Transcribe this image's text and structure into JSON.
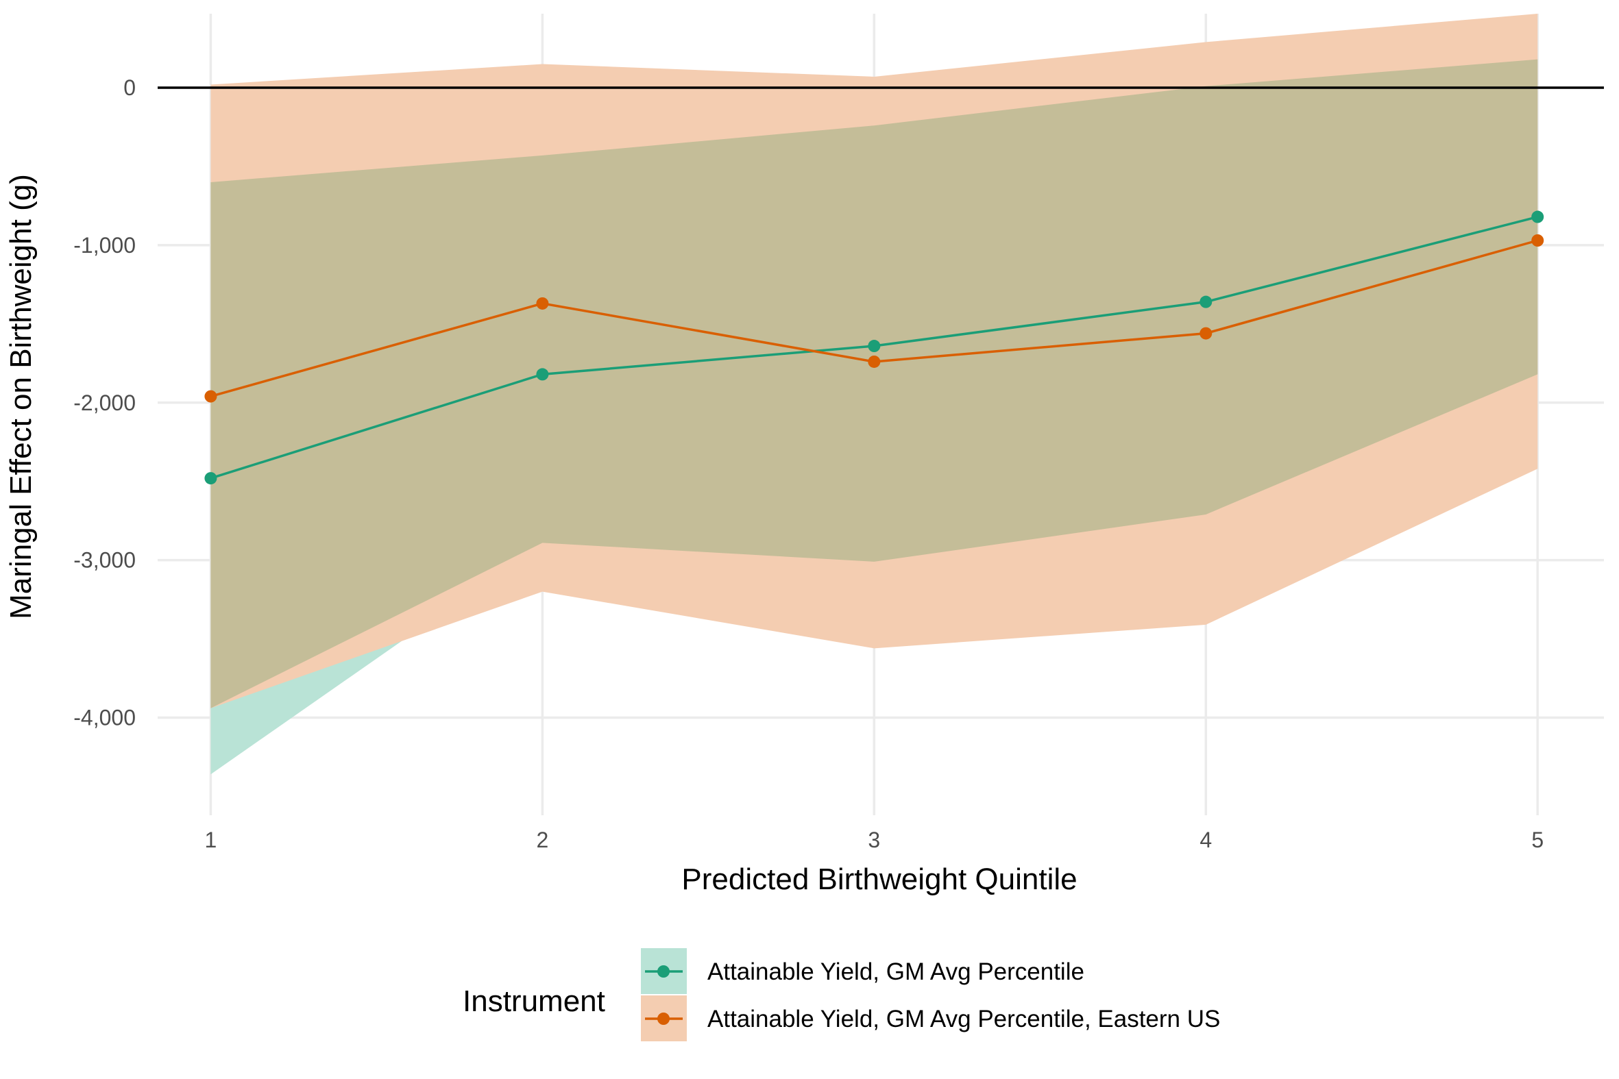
{
  "chart_data": {
    "type": "line",
    "xlabel": "Predicted Birthweight Quintile",
    "ylabel": "Maringal Effect on Birthweight (g)",
    "x": [
      1,
      2,
      3,
      4,
      5
    ],
    "xticks": [
      "1",
      "2",
      "3",
      "4",
      "5"
    ],
    "xlim": [
      0.84,
      5.2
    ],
    "ylim": [
      -4620,
      470
    ],
    "yticks": [
      {
        "value": -4000,
        "label": "-4,000"
      },
      {
        "value": -3000,
        "label": "-3,000"
      },
      {
        "value": -2000,
        "label": "-2,000"
      },
      {
        "value": -1000,
        "label": "-1,000"
      },
      {
        "value": 0,
        "label": "0"
      }
    ],
    "hline": 0,
    "grid": true,
    "legend": {
      "title": "Instrument",
      "position": "bottom"
    },
    "series": [
      {
        "name": "Attainable Yield, GM Avg Percentile",
        "color": "#1b9e77",
        "fill": "#b9e3d6",
        "values": [
          -2480,
          -1820,
          -1640,
          -1360,
          -820
        ],
        "lower": [
          -4360,
          -2890,
          -3010,
          -2710,
          -1820
        ],
        "upper": [
          -600,
          -430,
          -240,
          10,
          180
        ]
      },
      {
        "name": "Attainable Yield, GM Avg Percentile, Eastern US",
        "color": "#d95f02",
        "fill": "#f4cdb1",
        "values": [
          -1960,
          -1370,
          -1740,
          -1560,
          -970
        ],
        "lower": [
          -3940,
          -3200,
          -3560,
          -3410,
          -2420
        ],
        "upper": [
          20,
          150,
          70,
          290,
          470
        ]
      }
    ]
  }
}
